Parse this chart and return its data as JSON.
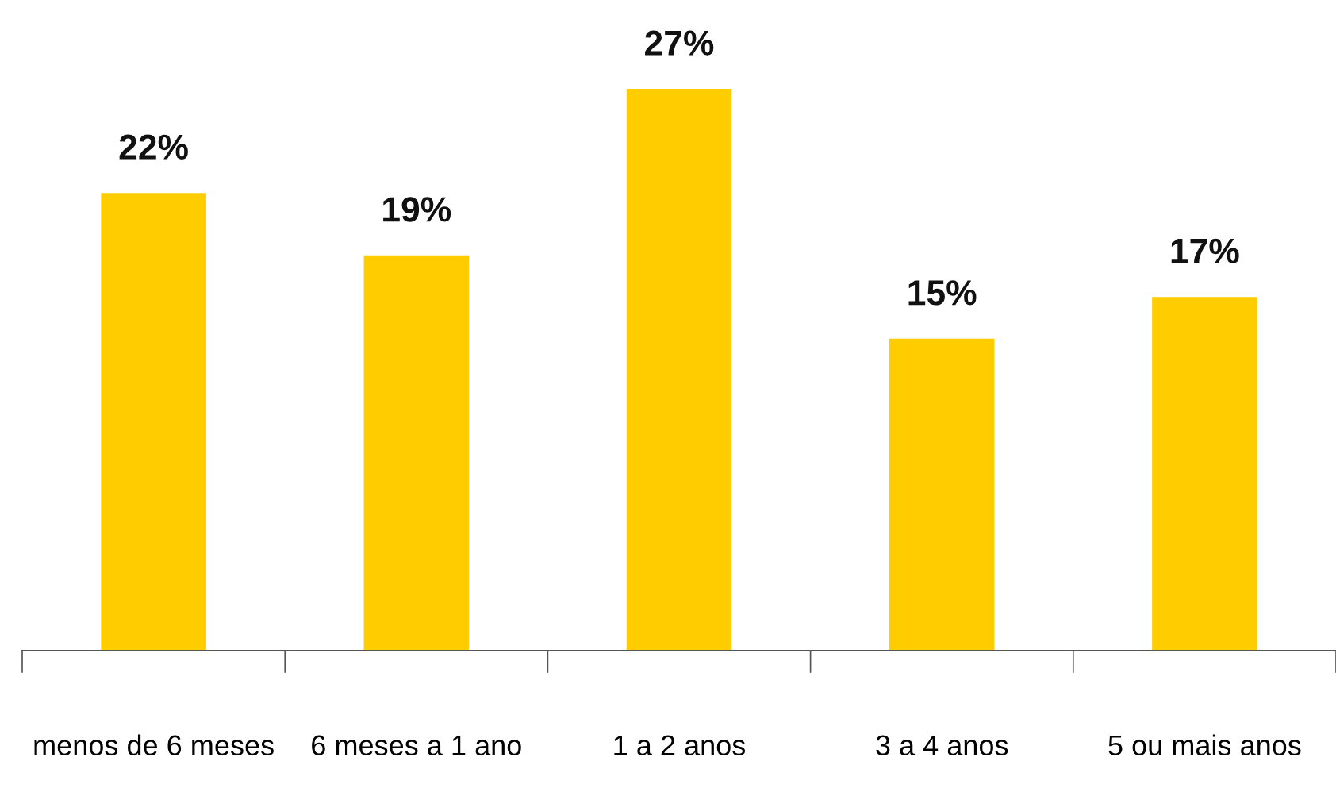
{
  "chart_data": {
    "type": "bar",
    "categories": [
      "menos de 6 meses",
      "6 meses a 1 ano",
      "1 a 2 anos",
      "3 a 4 anos",
      "5 ou mais anos"
    ],
    "values": [
      22,
      19,
      27,
      15,
      17
    ],
    "value_labels": [
      "22%",
      "19%",
      "27%",
      "15%",
      "17%"
    ],
    "color": "#ffcc00"
  }
}
